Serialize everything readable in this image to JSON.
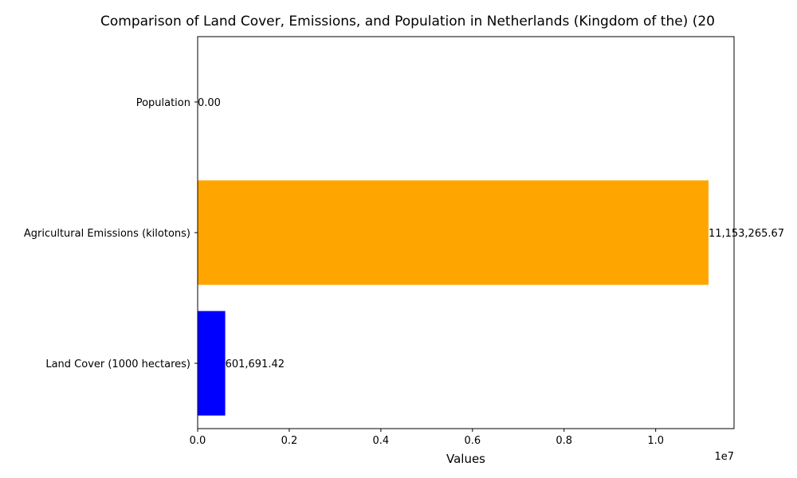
{
  "chart_data": {
    "type": "bar",
    "orientation": "horizontal",
    "title": "Comparison of Land Cover, Emissions, and Population in Netherlands (Kingdom of the) (20",
    "xlabel": "Values",
    "ylabel": "",
    "x_offset_label": "1e7",
    "categories": [
      "Land Cover (1000 hectares)",
      "Agricultural Emissions (kilotons)",
      "Population"
    ],
    "values": [
      601691.42,
      11153265.67,
      0
    ],
    "value_labels": [
      "601,691.42",
      "11,153,265.67",
      "0.00"
    ],
    "bar_colors": [
      "#0000ff",
      "#ffa500",
      "#0000ff"
    ],
    "xlim": [
      0,
      11710928.95
    ],
    "xticks": [
      0,
      2000000,
      4000000,
      6000000,
      8000000,
      10000000
    ],
    "xtick_labels": [
      "0.0",
      "0.2",
      "0.4",
      "0.6",
      "0.8",
      "1.0"
    ],
    "grid": false,
    "legend": "none"
  }
}
